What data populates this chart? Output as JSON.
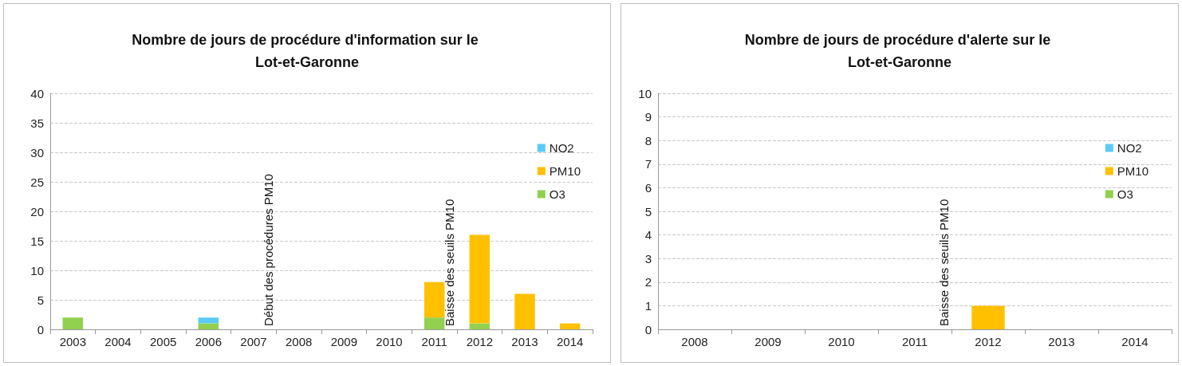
{
  "chart_data": [
    {
      "type": "bar",
      "title": "Nombre de jours de procédure d'information sur le Lot-et-Garonne",
      "categories": [
        "2003",
        "2004",
        "2005",
        "2006",
        "2007",
        "2008",
        "2009",
        "2010",
        "2011",
        "2012",
        "2013",
        "2014"
      ],
      "stacked": true,
      "series": [
        {
          "name": "O3",
          "color": "#92d050",
          "values": [
            2,
            null,
            null,
            1,
            null,
            null,
            null,
            null,
            2,
            1,
            null,
            null
          ]
        },
        {
          "name": "PM10",
          "color": "#ffc000",
          "values": [
            null,
            null,
            null,
            null,
            null,
            null,
            null,
            null,
            6,
            15,
            6,
            1
          ]
        },
        {
          "name": "NO2",
          "color": "#5bcbf5",
          "values": [
            null,
            null,
            null,
            1,
            null,
            null,
            null,
            null,
            null,
            null,
            null,
            null
          ]
        }
      ],
      "ylim": [
        0,
        40
      ],
      "yticks": [
        0,
        5,
        10,
        15,
        20,
        25,
        30,
        35,
        40
      ],
      "grid": "y",
      "legend": "top right",
      "annotations": [
        "Début des procédures PM10",
        "Baisse des seuils PM10"
      ]
    },
    {
      "type": "bar",
      "title": "Nombre de jours de procédure d'alerte sur le Lot-et-Garonne",
      "categories": [
        "2008",
        "2009",
        "2010",
        "2011",
        "2012",
        "2013",
        "2014"
      ],
      "stacked": true,
      "series": [
        {
          "name": "O3",
          "color": "#92d050",
          "values": [
            null,
            null,
            null,
            null,
            null,
            null,
            null
          ]
        },
        {
          "name": "PM10",
          "color": "#ffc000",
          "values": [
            null,
            null,
            null,
            null,
            1,
            null,
            null
          ]
        },
        {
          "name": "NO2",
          "color": "#5bcbf5",
          "values": [
            null,
            null,
            null,
            null,
            null,
            null,
            null
          ]
        }
      ],
      "ylim": [
        0,
        10
      ],
      "yticks": [
        0,
        1,
        2,
        3,
        4,
        5,
        6,
        7,
        8,
        9,
        10
      ],
      "grid": "y",
      "legend": "top right",
      "annotations": [
        "Baisse des seuils PM10"
      ]
    }
  ]
}
